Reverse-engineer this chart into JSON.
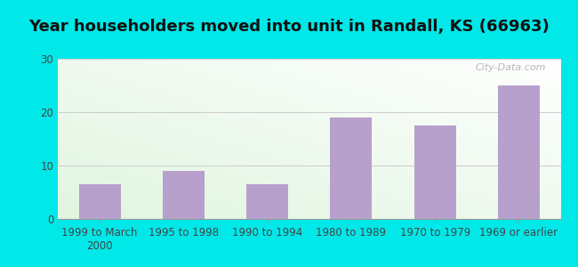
{
  "title": "Year householders moved into unit in Randall, KS (66963)",
  "categories": [
    "1999 to March\n2000",
    "1995 to 1998",
    "1990 to 1994",
    "1980 to 1989",
    "1970 to 1979",
    "1969 or earlier"
  ],
  "values": [
    6.5,
    9.0,
    6.5,
    19.0,
    17.5,
    25.0
  ],
  "bar_color": "#b8a0cc",
  "ylim": [
    0,
    30
  ],
  "yticks": [
    0,
    10,
    20,
    30
  ],
  "background_outer": "#00e8e8",
  "grid_color": "#cccccc",
  "title_fontsize": 13,
  "tick_fontsize": 8.5,
  "watermark": "City-Data.com"
}
